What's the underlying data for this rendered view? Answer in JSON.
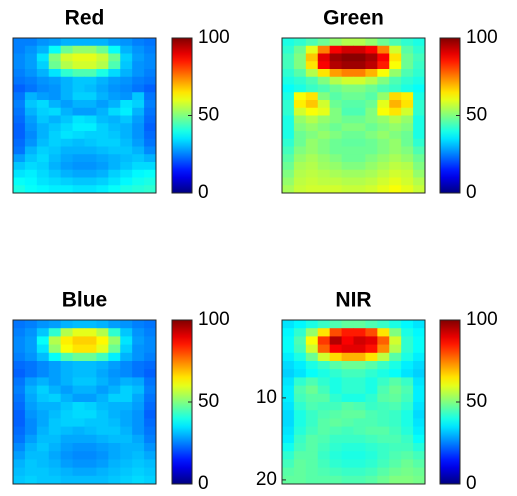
{
  "chart_data": [
    {
      "type": "heatmap",
      "title": "Red",
      "colormap": "jet",
      "zlim": [
        0,
        100
      ],
      "cticks": [
        0,
        50,
        100
      ],
      "z": [
        [
          25,
          25,
          27,
          28,
          30,
          30,
          30,
          30,
          28,
          27,
          25,
          24
        ],
        [
          25,
          27,
          30,
          38,
          48,
          52,
          52,
          48,
          38,
          30,
          27,
          25
        ],
        [
          26,
          28,
          35,
          50,
          58,
          60,
          60,
          57,
          48,
          33,
          28,
          26
        ],
        [
          26,
          28,
          33,
          48,
          55,
          58,
          58,
          55,
          45,
          32,
          27,
          26
        ],
        [
          25,
          27,
          30,
          35,
          42,
          45,
          45,
          40,
          34,
          30,
          27,
          25
        ],
        [
          24,
          25,
          27,
          28,
          30,
          32,
          32,
          30,
          28,
          27,
          25,
          24
        ],
        [
          22,
          24,
          26,
          27,
          30,
          32,
          31,
          29,
          27,
          26,
          24,
          22
        ],
        [
          24,
          30,
          28,
          27,
          30,
          33,
          33,
          30,
          28,
          27,
          32,
          24
        ],
        [
          25,
          32,
          34,
          30,
          28,
          30,
          30,
          28,
          30,
          35,
          33,
          25
        ],
        [
          24,
          30,
          33,
          34,
          30,
          28,
          28,
          30,
          34,
          36,
          30,
          24
        ],
        [
          23,
          28,
          32,
          30,
          32,
          35,
          34,
          31,
          30,
          32,
          28,
          23
        ],
        [
          22,
          27,
          30,
          32,
          34,
          36,
          36,
          33,
          31,
          30,
          27,
          22
        ],
        [
          22,
          26,
          30,
          33,
          35,
          34,
          33,
          33,
          32,
          30,
          27,
          23
        ],
        [
          23,
          27,
          31,
          33,
          32,
          31,
          32,
          33,
          33,
          31,
          28,
          24
        ],
        [
          24,
          30,
          33,
          32,
          30,
          30,
          30,
          31,
          32,
          32,
          30,
          26
        ],
        [
          28,
          32,
          34,
          31,
          29,
          28,
          28,
          29,
          30,
          31,
          32,
          30
        ],
        [
          32,
          34,
          33,
          30,
          28,
          27,
          27,
          28,
          30,
          32,
          34,
          34
        ],
        [
          35,
          36,
          34,
          32,
          30,
          29,
          29,
          30,
          33,
          35,
          37,
          38
        ],
        [
          38,
          37,
          35,
          34,
          33,
          32,
          32,
          33,
          35,
          37,
          39,
          40
        ],
        [
          40,
          38,
          37,
          36,
          36,
          35,
          35,
          36,
          38,
          40,
          41,
          42
        ]
      ]
    },
    {
      "type": "heatmap",
      "title": "Green",
      "colormap": "jet",
      "zlim": [
        0,
        100
      ],
      "cticks": [
        0,
        50,
        100
      ],
      "z": [
        [
          40,
          42,
          45,
          48,
          52,
          55,
          55,
          52,
          48,
          45,
          42,
          40
        ],
        [
          42,
          48,
          60,
          75,
          88,
          92,
          92,
          88,
          75,
          58,
          46,
          42
        ],
        [
          44,
          50,
          68,
          90,
          97,
          99,
          99,
          96,
          88,
          65,
          48,
          44
        ],
        [
          44,
          50,
          65,
          88,
          95,
          97,
          97,
          94,
          85,
          62,
          48,
          43
        ],
        [
          42,
          46,
          55,
          65,
          72,
          75,
          75,
          70,
          62,
          52,
          45,
          42
        ],
        [
          40,
          42,
          45,
          50,
          55,
          58,
          58,
          55,
          50,
          45,
          42,
          40
        ],
        [
          38,
          40,
          43,
          45,
          48,
          50,
          50,
          48,
          45,
          43,
          40,
          38
        ],
        [
          40,
          62,
          65,
          50,
          46,
          48,
          48,
          46,
          52,
          66,
          64,
          40
        ],
        [
          42,
          64,
          68,
          58,
          48,
          46,
          46,
          48,
          60,
          70,
          65,
          42
        ],
        [
          42,
          58,
          62,
          60,
          50,
          45,
          45,
          50,
          62,
          65,
          58,
          42
        ],
        [
          40,
          52,
          55,
          52,
          50,
          48,
          48,
          50,
          52,
          55,
          52,
          40
        ],
        [
          40,
          50,
          52,
          50,
          48,
          50,
          50,
          48,
          50,
          52,
          50,
          40
        ],
        [
          40,
          48,
          50,
          52,
          50,
          48,
          48,
          50,
          52,
          50,
          48,
          40
        ],
        [
          42,
          48,
          52,
          50,
          48,
          47,
          47,
          48,
          50,
          52,
          48,
          42
        ],
        [
          44,
          50,
          52,
          50,
          48,
          48,
          48,
          48,
          50,
          52,
          50,
          45
        ],
        [
          46,
          52,
          54,
          52,
          50,
          48,
          48,
          50,
          52,
          54,
          52,
          48
        ],
        [
          48,
          54,
          55,
          53,
          52,
          50,
          50,
          52,
          54,
          56,
          55,
          50
        ],
        [
          50,
          55,
          56,
          55,
          54,
          53,
          53,
          54,
          56,
          58,
          57,
          52
        ],
        [
          52,
          56,
          57,
          56,
          56,
          55,
          55,
          56,
          58,
          60,
          58,
          55
        ],
        [
          54,
          57,
          58,
          58,
          58,
          57,
          57,
          58,
          60,
          62,
          60,
          57
        ]
      ]
    },
    {
      "type": "heatmap",
      "title": "Blue",
      "colormap": "jet",
      "zlim": [
        0,
        100
      ],
      "cticks": [
        0,
        50,
        100
      ],
      "z": [
        [
          24,
          25,
          27,
          28,
          30,
          31,
          31,
          30,
          28,
          27,
          25,
          24
        ],
        [
          25,
          27,
          32,
          42,
          55,
          60,
          60,
          55,
          42,
          32,
          27,
          25
        ],
        [
          26,
          28,
          38,
          55,
          64,
          67,
          67,
          63,
          52,
          35,
          28,
          26
        ],
        [
          26,
          28,
          35,
          52,
          62,
          65,
          65,
          60,
          48,
          33,
          27,
          26
        ],
        [
          25,
          27,
          31,
          38,
          45,
          48,
          48,
          44,
          36,
          30,
          27,
          25
        ],
        [
          23,
          24,
          26,
          28,
          30,
          31,
          31,
          30,
          28,
          26,
          24,
          23
        ],
        [
          22,
          24,
          26,
          28,
          30,
          31,
          31,
          29,
          27,
          26,
          24,
          22
        ],
        [
          24,
          28,
          30,
          28,
          30,
          32,
          32,
          30,
          28,
          30,
          29,
          24
        ],
        [
          25,
          30,
          33,
          30,
          28,
          30,
          30,
          28,
          30,
          33,
          31,
          25
        ],
        [
          24,
          29,
          32,
          33,
          30,
          28,
          28,
          30,
          33,
          33,
          29,
          24
        ],
        [
          23,
          28,
          30,
          30,
          32,
          34,
          33,
          31,
          30,
          30,
          28,
          23
        ],
        [
          22,
          27,
          29,
          31,
          33,
          34,
          34,
          32,
          30,
          29,
          27,
          22
        ],
        [
          22,
          26,
          29,
          32,
          33,
          33,
          32,
          32,
          31,
          29,
          27,
          23
        ],
        [
          23,
          26,
          30,
          32,
          31,
          30,
          31,
          32,
          32,
          30,
          27,
          24
        ],
        [
          24,
          28,
          31,
          31,
          29,
          29,
          29,
          30,
          31,
          31,
          29,
          25
        ],
        [
          26,
          30,
          32,
          30,
          28,
          27,
          27,
          28,
          29,
          30,
          30,
          27
        ],
        [
          28,
          31,
          31,
          29,
          27,
          26,
          26,
          27,
          29,
          30,
          31,
          29
        ],
        [
          30,
          32,
          31,
          30,
          28,
          27,
          27,
          28,
          30,
          31,
          32,
          31
        ],
        [
          31,
          32,
          32,
          31,
          30,
          29,
          29,
          30,
          31,
          32,
          33,
          32
        ],
        [
          32,
          33,
          32,
          32,
          31,
          31,
          31,
          31,
          32,
          33,
          34,
          33
        ]
      ]
    },
    {
      "type": "heatmap",
      "title": "NIR",
      "colormap": "jet",
      "zlim": [
        0,
        100
      ],
      "cticks": [
        0,
        50,
        100
      ],
      "ylim": [
        0.5,
        20.5
      ],
      "yticks": [
        10,
        20
      ],
      "z": [
        [
          35,
          37,
          40,
          43,
          45,
          47,
          47,
          45,
          43,
          40,
          37,
          35
        ],
        [
          37,
          42,
          52,
          65,
          80,
          85,
          85,
          80,
          65,
          50,
          40,
          37
        ],
        [
          38,
          45,
          62,
          82,
          95,
          88,
          92,
          90,
          78,
          58,
          42,
          38
        ],
        [
          38,
          44,
          58,
          78,
          88,
          90,
          90,
          86,
          74,
          55,
          42,
          38
        ],
        [
          36,
          40,
          48,
          58,
          66,
          70,
          70,
          65,
          56,
          46,
          40,
          36
        ],
        [
          34,
          36,
          40,
          43,
          46,
          48,
          48,
          46,
          43,
          40,
          36,
          34
        ],
        [
          33,
          35,
          38,
          40,
          42,
          44,
          44,
          42,
          40,
          38,
          35,
          33
        ],
        [
          35,
          42,
          45,
          42,
          40,
          42,
          42,
          40,
          43,
          46,
          43,
          35
        ],
        [
          36,
          45,
          48,
          44,
          40,
          42,
          42,
          40,
          45,
          48,
          45,
          36
        ],
        [
          36,
          44,
          46,
          46,
          42,
          40,
          40,
          42,
          46,
          47,
          44,
          36
        ],
        [
          35,
          42,
          45,
          44,
          44,
          46,
          45,
          43,
          44,
          45,
          42,
          35
        ],
        [
          34,
          40,
          43,
          45,
          46,
          47,
          47,
          45,
          44,
          43,
          40,
          34
        ],
        [
          34,
          40,
          43,
          46,
          47,
          46,
          45,
          45,
          44,
          43,
          40,
          35
        ],
        [
          35,
          41,
          44,
          46,
          45,
          44,
          45,
          46,
          46,
          44,
          41,
          36
        ],
        [
          36,
          43,
          46,
          45,
          43,
          43,
          43,
          44,
          45,
          45,
          43,
          38
        ],
        [
          39,
          44,
          46,
          44,
          42,
          41,
          41,
          42,
          43,
          44,
          44,
          41
        ],
        [
          42,
          46,
          46,
          43,
          41,
          40,
          40,
          41,
          43,
          45,
          46,
          44
        ],
        [
          44,
          47,
          46,
          44,
          42,
          41,
          41,
          42,
          44,
          46,
          48,
          46
        ],
        [
          46,
          47,
          46,
          45,
          44,
          43,
          43,
          44,
          46,
          48,
          49,
          48
        ],
        [
          47,
          47,
          46,
          46,
          46,
          45,
          45,
          46,
          48,
          50,
          50,
          49
        ]
      ]
    }
  ]
}
